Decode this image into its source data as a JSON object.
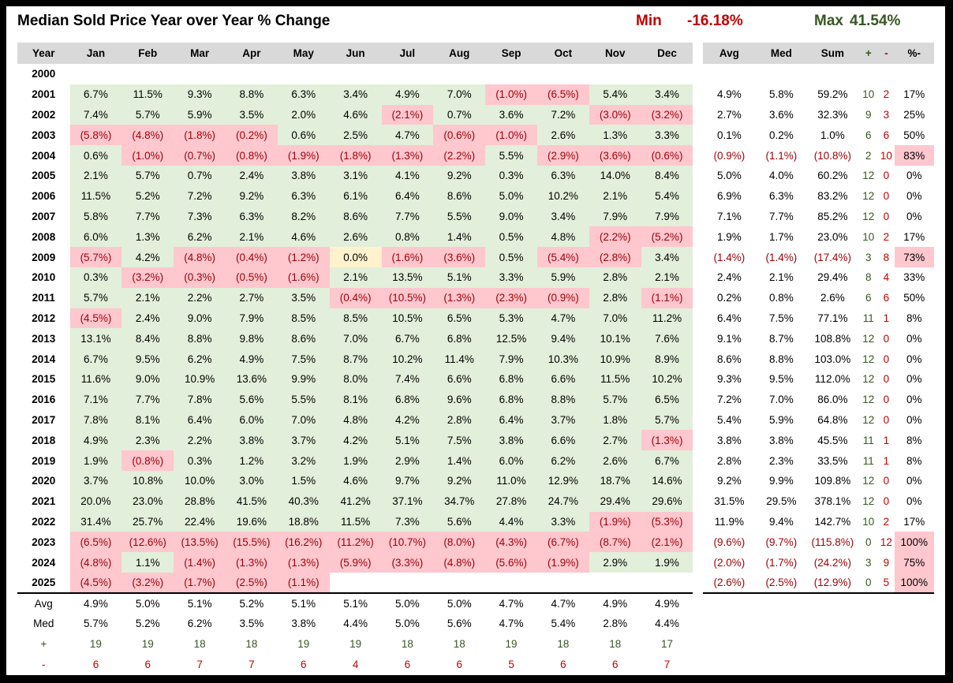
{
  "title": "Median Sold Price Year over Year % Change",
  "min": {
    "label": "Min",
    "value": "-16.18%"
  },
  "max": {
    "label": "Max",
    "value": "41.54%"
  },
  "headers": [
    "Year",
    "Jan",
    "Feb",
    "Mar",
    "Apr",
    "May",
    "Jun",
    "Jul",
    "Aug",
    "Sep",
    "Oct",
    "Nov",
    "Dec",
    "Avg",
    "Med",
    "Sum",
    "+",
    "-",
    "%-"
  ],
  "colors": {
    "positive_fill": "#e2efda",
    "negative_fill": "#ffc7ce",
    "zero_fill": "#fff2cc",
    "negative_text": "#9c0006",
    "plus_text": "#375623",
    "minus_text": "#c00000"
  },
  "rows": [
    {
      "year": "2000",
      "months": [
        "",
        "",
        "",
        "",
        "",
        "",
        "",
        "",
        "",
        "",
        "",
        ""
      ],
      "avg": "",
      "med": "",
      "sum": "",
      "plus": "",
      "minus": "",
      "pct": ""
    },
    {
      "year": "2001",
      "months": [
        "6.7%",
        "11.5%",
        "9.3%",
        "8.8%",
        "6.3%",
        "3.4%",
        "4.9%",
        "7.0%",
        "(1.0%)",
        "(6.5%)",
        "5.4%",
        "3.4%"
      ],
      "avg": "4.9%",
      "med": "5.8%",
      "sum": "59.2%",
      "plus": "10",
      "minus": "2",
      "pct": "17%"
    },
    {
      "year": "2002",
      "months": [
        "7.4%",
        "5.7%",
        "5.9%",
        "3.5%",
        "2.0%",
        "4.6%",
        "(2.1%)",
        "0.7%",
        "3.6%",
        "7.2%",
        "(3.0%)",
        "(3.2%)"
      ],
      "avg": "2.7%",
      "med": "3.6%",
      "sum": "32.3%",
      "plus": "9",
      "minus": "3",
      "pct": "25%"
    },
    {
      "year": "2003",
      "months": [
        "(5.8%)",
        "(4.8%)",
        "(1.8%)",
        "(0.2%)",
        "0.6%",
        "2.5%",
        "4.7%",
        "(0.6%)",
        "(1.0%)",
        "2.6%",
        "1.3%",
        "3.3%"
      ],
      "avg": "0.1%",
      "med": "0.2%",
      "sum": "1.0%",
      "plus": "6",
      "minus": "6",
      "pct": "50%"
    },
    {
      "year": "2004",
      "months": [
        "0.6%",
        "(1.0%)",
        "(0.7%)",
        "(0.8%)",
        "(1.9%)",
        "(1.8%)",
        "(1.3%)",
        "(2.2%)",
        "5.5%",
        "(2.9%)",
        "(3.6%)",
        "(0.6%)"
      ],
      "avg": "(0.9%)",
      "med": "(1.1%)",
      "sum": "(10.8%)",
      "plus": "2",
      "minus": "10",
      "pct": "83%"
    },
    {
      "year": "2005",
      "months": [
        "2.1%",
        "5.7%",
        "0.7%",
        "2.4%",
        "3.8%",
        "3.1%",
        "4.1%",
        "9.2%",
        "0.3%",
        "6.3%",
        "14.0%",
        "8.4%"
      ],
      "avg": "5.0%",
      "med": "4.0%",
      "sum": "60.2%",
      "plus": "12",
      "minus": "0",
      "pct": "0%"
    },
    {
      "year": "2006",
      "months": [
        "11.5%",
        "5.2%",
        "7.2%",
        "9.2%",
        "6.3%",
        "6.1%",
        "6.4%",
        "8.6%",
        "5.0%",
        "10.2%",
        "2.1%",
        "5.4%"
      ],
      "avg": "6.9%",
      "med": "6.3%",
      "sum": "83.2%",
      "plus": "12",
      "minus": "0",
      "pct": "0%"
    },
    {
      "year": "2007",
      "months": [
        "5.8%",
        "7.7%",
        "7.3%",
        "6.3%",
        "8.2%",
        "8.6%",
        "7.7%",
        "5.5%",
        "9.0%",
        "3.4%",
        "7.9%",
        "7.9%"
      ],
      "avg": "7.1%",
      "med": "7.7%",
      "sum": "85.2%",
      "plus": "12",
      "minus": "0",
      "pct": "0%"
    },
    {
      "year": "2008",
      "months": [
        "6.0%",
        "1.3%",
        "6.2%",
        "2.1%",
        "4.6%",
        "2.6%",
        "0.8%",
        "1.4%",
        "0.5%",
        "4.8%",
        "(2.2%)",
        "(5.2%)"
      ],
      "avg": "1.9%",
      "med": "1.7%",
      "sum": "23.0%",
      "plus": "10",
      "minus": "2",
      "pct": "17%"
    },
    {
      "year": "2009",
      "months": [
        "(5.7%)",
        "4.2%",
        "(4.8%)",
        "(0.4%)",
        "(1.2%)",
        "0.0%",
        "(1.6%)",
        "(3.6%)",
        "0.5%",
        "(5.4%)",
        "(2.8%)",
        "3.4%"
      ],
      "avg": "(1.4%)",
      "med": "(1.4%)",
      "sum": "(17.4%)",
      "plus": "3",
      "minus": "8",
      "pct": "73%"
    },
    {
      "year": "2010",
      "months": [
        "0.3%",
        "(3.2%)",
        "(0.3%)",
        "(0.5%)",
        "(1.6%)",
        "2.1%",
        "13.5%",
        "5.1%",
        "3.3%",
        "5.9%",
        "2.8%",
        "2.1%"
      ],
      "avg": "2.4%",
      "med": "2.1%",
      "sum": "29.4%",
      "plus": "8",
      "minus": "4",
      "pct": "33%"
    },
    {
      "year": "2011",
      "months": [
        "5.7%",
        "2.1%",
        "2.2%",
        "2.7%",
        "3.5%",
        "(0.4%)",
        "(10.5%)",
        "(1.3%)",
        "(2.3%)",
        "(0.9%)",
        "2.8%",
        "(1.1%)"
      ],
      "avg": "0.2%",
      "med": "0.8%",
      "sum": "2.6%",
      "plus": "6",
      "minus": "6",
      "pct": "50%"
    },
    {
      "year": "2012",
      "months": [
        "(4.5%)",
        "2.4%",
        "9.0%",
        "7.9%",
        "8.5%",
        "8.5%",
        "10.5%",
        "6.5%",
        "5.3%",
        "4.7%",
        "7.0%",
        "11.2%"
      ],
      "avg": "6.4%",
      "med": "7.5%",
      "sum": "77.1%",
      "plus": "11",
      "minus": "1",
      "pct": "8%"
    },
    {
      "year": "2013",
      "months": [
        "13.1%",
        "8.4%",
        "8.8%",
        "9.8%",
        "8.6%",
        "7.0%",
        "6.7%",
        "6.8%",
        "12.5%",
        "9.4%",
        "10.1%",
        "7.6%"
      ],
      "avg": "9.1%",
      "med": "8.7%",
      "sum": "108.8%",
      "plus": "12",
      "minus": "0",
      "pct": "0%"
    },
    {
      "year": "2014",
      "months": [
        "6.7%",
        "9.5%",
        "6.2%",
        "4.9%",
        "7.5%",
        "8.7%",
        "10.2%",
        "11.4%",
        "7.9%",
        "10.3%",
        "10.9%",
        "8.9%"
      ],
      "avg": "8.6%",
      "med": "8.8%",
      "sum": "103.0%",
      "plus": "12",
      "minus": "0",
      "pct": "0%"
    },
    {
      "year": "2015",
      "months": [
        "11.6%",
        "9.0%",
        "10.9%",
        "13.6%",
        "9.9%",
        "8.0%",
        "7.4%",
        "6.6%",
        "6.8%",
        "6.6%",
        "11.5%",
        "10.2%"
      ],
      "avg": "9.3%",
      "med": "9.5%",
      "sum": "112.0%",
      "plus": "12",
      "minus": "0",
      "pct": "0%"
    },
    {
      "year": "2016",
      "months": [
        "7.1%",
        "7.7%",
        "7.8%",
        "5.6%",
        "5.5%",
        "8.1%",
        "6.8%",
        "9.6%",
        "6.8%",
        "8.8%",
        "5.7%",
        "6.5%"
      ],
      "avg": "7.2%",
      "med": "7.0%",
      "sum": "86.0%",
      "plus": "12",
      "minus": "0",
      "pct": "0%"
    },
    {
      "year": "2017",
      "months": [
        "7.8%",
        "8.1%",
        "6.4%",
        "6.0%",
        "7.0%",
        "4.8%",
        "4.2%",
        "2.8%",
        "6.4%",
        "3.7%",
        "1.8%",
        "5.7%"
      ],
      "avg": "5.4%",
      "med": "5.9%",
      "sum": "64.8%",
      "plus": "12",
      "minus": "0",
      "pct": "0%"
    },
    {
      "year": "2018",
      "months": [
        "4.9%",
        "2.3%",
        "2.2%",
        "3.8%",
        "3.7%",
        "4.2%",
        "5.1%",
        "7.5%",
        "3.8%",
        "6.6%",
        "2.7%",
        "(1.3%)"
      ],
      "avg": "3.8%",
      "med": "3.8%",
      "sum": "45.5%",
      "plus": "11",
      "minus": "1",
      "pct": "8%"
    },
    {
      "year": "2019",
      "months": [
        "1.9%",
        "(0.8%)",
        "0.3%",
        "1.2%",
        "3.2%",
        "1.9%",
        "2.9%",
        "1.4%",
        "6.0%",
        "6.2%",
        "2.6%",
        "6.7%"
      ],
      "avg": "2.8%",
      "med": "2.3%",
      "sum": "33.5%",
      "plus": "11",
      "minus": "1",
      "pct": "8%"
    },
    {
      "year": "2020",
      "months": [
        "3.7%",
        "10.8%",
        "10.0%",
        "3.0%",
        "1.5%",
        "4.6%",
        "9.7%",
        "9.2%",
        "11.0%",
        "12.9%",
        "18.7%",
        "14.6%"
      ],
      "avg": "9.2%",
      "med": "9.9%",
      "sum": "109.8%",
      "plus": "12",
      "minus": "0",
      "pct": "0%"
    },
    {
      "year": "2021",
      "months": [
        "20.0%",
        "23.0%",
        "28.8%",
        "41.5%",
        "40.3%",
        "41.2%",
        "37.1%",
        "34.7%",
        "27.8%",
        "24.7%",
        "29.4%",
        "29.6%"
      ],
      "avg": "31.5%",
      "med": "29.5%",
      "sum": "378.1%",
      "plus": "12",
      "minus": "0",
      "pct": "0%"
    },
    {
      "year": "2022",
      "months": [
        "31.4%",
        "25.7%",
        "22.4%",
        "19.6%",
        "18.8%",
        "11.5%",
        "7.3%",
        "5.6%",
        "4.4%",
        "3.3%",
        "(1.9%)",
        "(5.3%)"
      ],
      "avg": "11.9%",
      "med": "9.4%",
      "sum": "142.7%",
      "plus": "10",
      "minus": "2",
      "pct": "17%"
    },
    {
      "year": "2023",
      "months": [
        "(6.5%)",
        "(12.6%)",
        "(13.5%)",
        "(15.5%)",
        "(16.2%)",
        "(11.2%)",
        "(10.7%)",
        "(8.0%)",
        "(4.3%)",
        "(6.7%)",
        "(8.7%)",
        "(2.1%)"
      ],
      "avg": "(9.6%)",
      "med": "(9.7%)",
      "sum": "(115.8%)",
      "plus": "0",
      "minus": "12",
      "pct": "100%"
    },
    {
      "year": "2024",
      "months": [
        "(4.8%)",
        "1.1%",
        "(1.4%)",
        "(1.3%)",
        "(1.3%)",
        "(5.9%)",
        "(3.3%)",
        "(4.8%)",
        "(5.6%)",
        "(1.9%)",
        "2.9%",
        "1.9%"
      ],
      "avg": "(2.0%)",
      "med": "(1.7%)",
      "sum": "(24.2%)",
      "plus": "3",
      "minus": "9",
      "pct": "75%"
    },
    {
      "year": "2025",
      "months": [
        "(4.5%)",
        "(3.2%)",
        "(1.7%)",
        "(2.5%)",
        "(1.1%)",
        "",
        "",
        "",
        "",
        "",
        "",
        ""
      ],
      "avg": "(2.6%)",
      "med": "(2.5%)",
      "sum": "(12.9%)",
      "plus": "0",
      "minus": "5",
      "pct": "100%"
    }
  ],
  "summary": [
    {
      "label": "Avg",
      "values": [
        "4.9%",
        "5.0%",
        "5.1%",
        "5.2%",
        "5.1%",
        "5.1%",
        "5.0%",
        "5.0%",
        "4.7%",
        "4.7%",
        "4.9%",
        "4.9%"
      ]
    },
    {
      "label": "Med",
      "values": [
        "5.7%",
        "5.2%",
        "6.2%",
        "3.5%",
        "3.8%",
        "4.4%",
        "5.0%",
        "5.6%",
        "4.7%",
        "5.4%",
        "2.8%",
        "4.4%"
      ]
    },
    {
      "label": "+",
      "values": [
        "19",
        "19",
        "18",
        "18",
        "19",
        "19",
        "18",
        "18",
        "19",
        "18",
        "18",
        "17"
      ]
    },
    {
      "label": "-",
      "values": [
        "6",
        "6",
        "7",
        "7",
        "6",
        "4",
        "6",
        "6",
        "5",
        "6",
        "6",
        "7"
      ]
    }
  ]
}
